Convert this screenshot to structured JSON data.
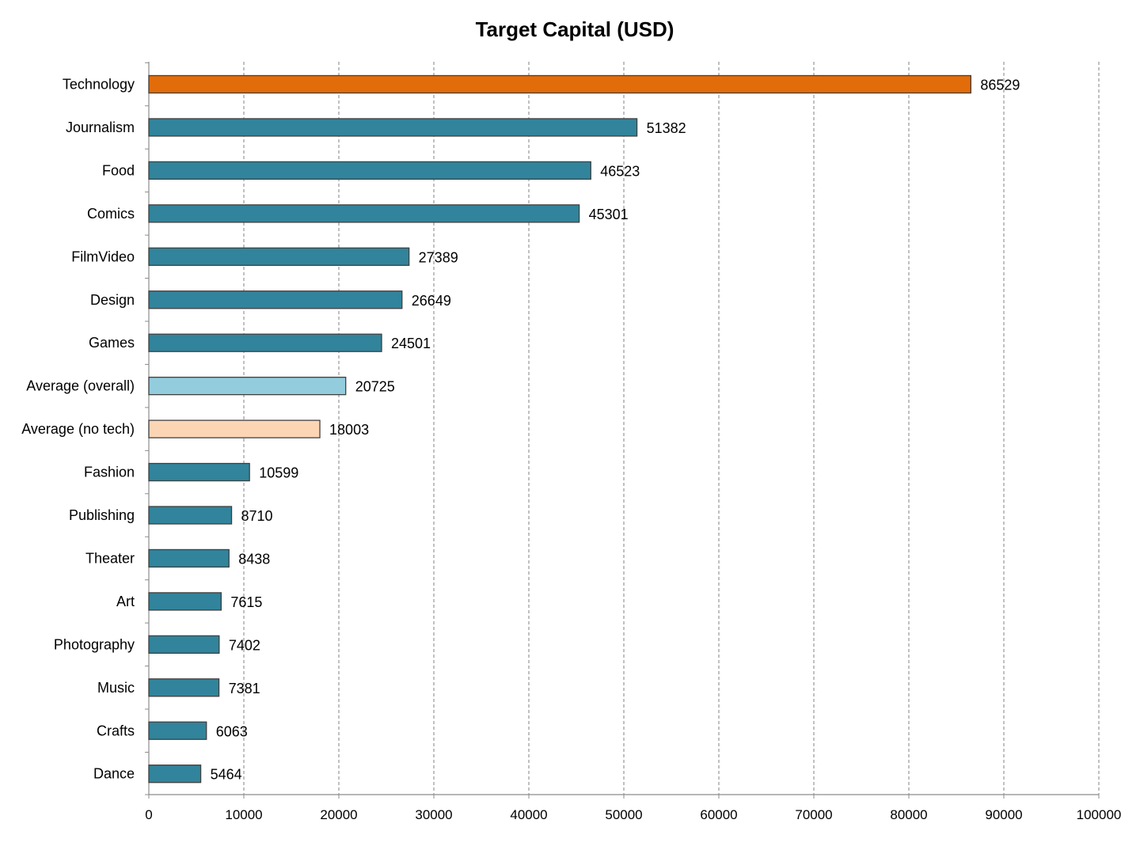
{
  "chart_data": {
    "type": "bar",
    "orientation": "horizontal",
    "title": "Target Capital (USD)",
    "xlabel": "",
    "ylabel": "",
    "xlim": [
      0,
      100000
    ],
    "x_ticks": [
      0,
      10000,
      20000,
      30000,
      40000,
      50000,
      60000,
      70000,
      80000,
      90000,
      100000
    ],
    "x_tick_labels": [
      "0",
      "10000",
      "20000",
      "30000",
      "40000",
      "50000",
      "60000",
      "70000",
      "80000",
      "90000",
      "100000"
    ],
    "grid": true,
    "legend": "none",
    "categories": [
      "Technology",
      "Journalism",
      "Food",
      "Comics",
      "FilmVideo",
      "Design",
      "Games",
      "Average (overall)",
      "Average (no tech)",
      "Fashion",
      "Publishing",
      "Theater",
      "Art",
      "Photography",
      "Music",
      "Crafts",
      "Dance"
    ],
    "values": [
      86529,
      51382,
      46523,
      45301,
      27389,
      26649,
      24501,
      20725,
      18003,
      10599,
      8710,
      8438,
      7615,
      7402,
      7381,
      6063,
      5464
    ],
    "value_labels": [
      "86529",
      "51382",
      "46523",
      "45301",
      "27389",
      "26649",
      "24501",
      "20725",
      "18003",
      "10599",
      "8710",
      "8438",
      "7615",
      "7402",
      "7381",
      "6063",
      "5464"
    ],
    "bar_colors": [
      "#E36C0A",
      "#31849B",
      "#31849B",
      "#31849B",
      "#31849B",
      "#31849B",
      "#31849B",
      "#93CDDD",
      "#FCD5B5",
      "#31849B",
      "#31849B",
      "#31849B",
      "#31849B",
      "#31849B",
      "#31849B",
      "#31849B",
      "#31849B"
    ],
    "colors": {
      "default_bar": "#31849B",
      "highlight_bar": "#E36C0A",
      "average_overall_bar": "#93CDDD",
      "average_no_tech_bar": "#FCD5B5"
    }
  }
}
